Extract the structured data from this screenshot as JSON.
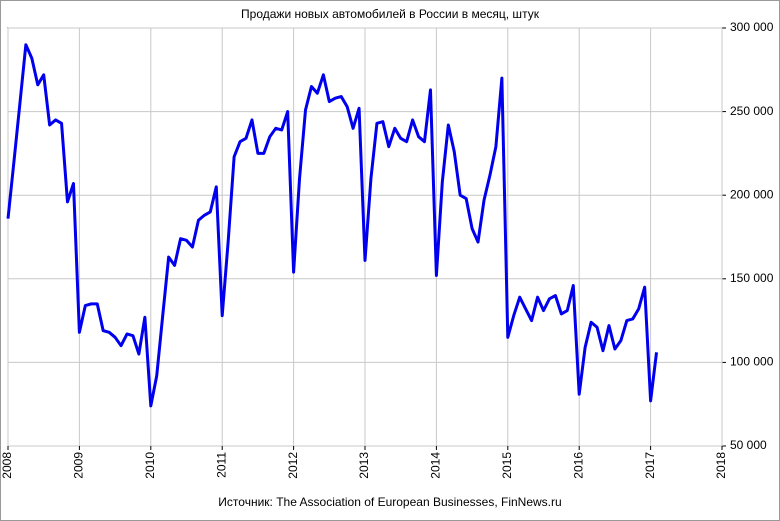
{
  "chart_data": {
    "type": "line",
    "title": "Продажи новых автомобилей в России в месяц, штук",
    "source": "Источник: The Association of European Businesses, FinNews.ru",
    "x": [
      2008,
      2008.083,
      2008.167,
      2008.25,
      2008.333,
      2008.417,
      2008.5,
      2008.583,
      2008.667,
      2008.75,
      2008.833,
      2008.917,
      2009,
      2009.083,
      2009.167,
      2009.25,
      2009.333,
      2009.417,
      2009.5,
      2009.583,
      2009.667,
      2009.75,
      2009.833,
      2009.917,
      2010,
      2010.083,
      2010.167,
      2010.25,
      2010.333,
      2010.417,
      2010.5,
      2010.583,
      2010.667,
      2010.75,
      2010.833,
      2010.917,
      2011,
      2011.083,
      2011.167,
      2011.25,
      2011.333,
      2011.417,
      2011.5,
      2011.583,
      2011.667,
      2011.75,
      2011.833,
      2011.917,
      2012,
      2012.083,
      2012.167,
      2012.25,
      2012.333,
      2012.417,
      2012.5,
      2012.583,
      2012.667,
      2012.75,
      2012.833,
      2012.917,
      2013,
      2013.083,
      2013.167,
      2013.25,
      2013.333,
      2013.417,
      2013.5,
      2013.583,
      2013.667,
      2013.75,
      2013.833,
      2013.917,
      2014,
      2014.083,
      2014.167,
      2014.25,
      2014.333,
      2014.417,
      2014.5,
      2014.583,
      2014.667,
      2014.75,
      2014.833,
      2014.917,
      2015,
      2015.083,
      2015.167,
      2015.25,
      2015.333,
      2015.417,
      2015.5,
      2015.583,
      2015.667,
      2015.75,
      2015.833,
      2015.917,
      2016,
      2016.083,
      2016.167,
      2016.25,
      2016.333,
      2016.417,
      2016.5,
      2016.583,
      2016.667,
      2016.75,
      2016.833,
      2016.917,
      2017,
      2017.083
    ],
    "series": [
      {
        "name": "Продажи",
        "color": "#0000ee",
        "values": [
          186000,
          220000,
          255000,
          290000,
          282000,
          266000,
          272000,
          242000,
          245000,
          243000,
          196000,
          207000,
          118000,
          134000,
          135000,
          135000,
          119000,
          118000,
          115000,
          110000,
          117000,
          116000,
          105000,
          127000,
          74000,
          92000,
          128000,
          163000,
          158000,
          174000,
          173000,
          169000,
          185000,
          188000,
          190000,
          205000,
          128000,
          172000,
          223000,
          232000,
          234000,
          245000,
          225000,
          225000,
          235000,
          240000,
          239000,
          250000,
          154000,
          210000,
          251000,
          265000,
          261000,
          272000,
          256000,
          258000,
          259000,
          253000,
          240000,
          252000,
          161000,
          210000,
          243000,
          244000,
          229000,
          240000,
          234000,
          232000,
          245000,
          235000,
          232000,
          263000,
          152000,
          208000,
          242000,
          226000,
          200000,
          198000,
          180000,
          172000,
          197000,
          212000,
          229000,
          270000,
          115000,
          128000,
          139000,
          132000,
          125000,
          139000,
          131000,
          138000,
          140000,
          129000,
          131000,
          146000,
          81000,
          109000,
          124000,
          121000,
          107000,
          122000,
          108000,
          113000,
          125000,
          126000,
          132000,
          145000,
          77000,
          106000
        ]
      }
    ],
    "xlim": [
      2008,
      2018
    ],
    "xticks": [
      2008,
      2009,
      2010,
      2011,
      2012,
      2013,
      2014,
      2015,
      2016,
      2017,
      2018
    ],
    "ylim": [
      50000,
      300000
    ],
    "yticks": [
      {
        "value": 50000,
        "label": "50 000"
      },
      {
        "value": 100000,
        "label": "100 000"
      },
      {
        "value": 150000,
        "label": "150 000"
      },
      {
        "value": 200000,
        "label": "200 000"
      },
      {
        "value": 250000,
        "label": "250 000"
      },
      {
        "value": 300000,
        "label": "300 000"
      }
    ],
    "grid": true
  }
}
